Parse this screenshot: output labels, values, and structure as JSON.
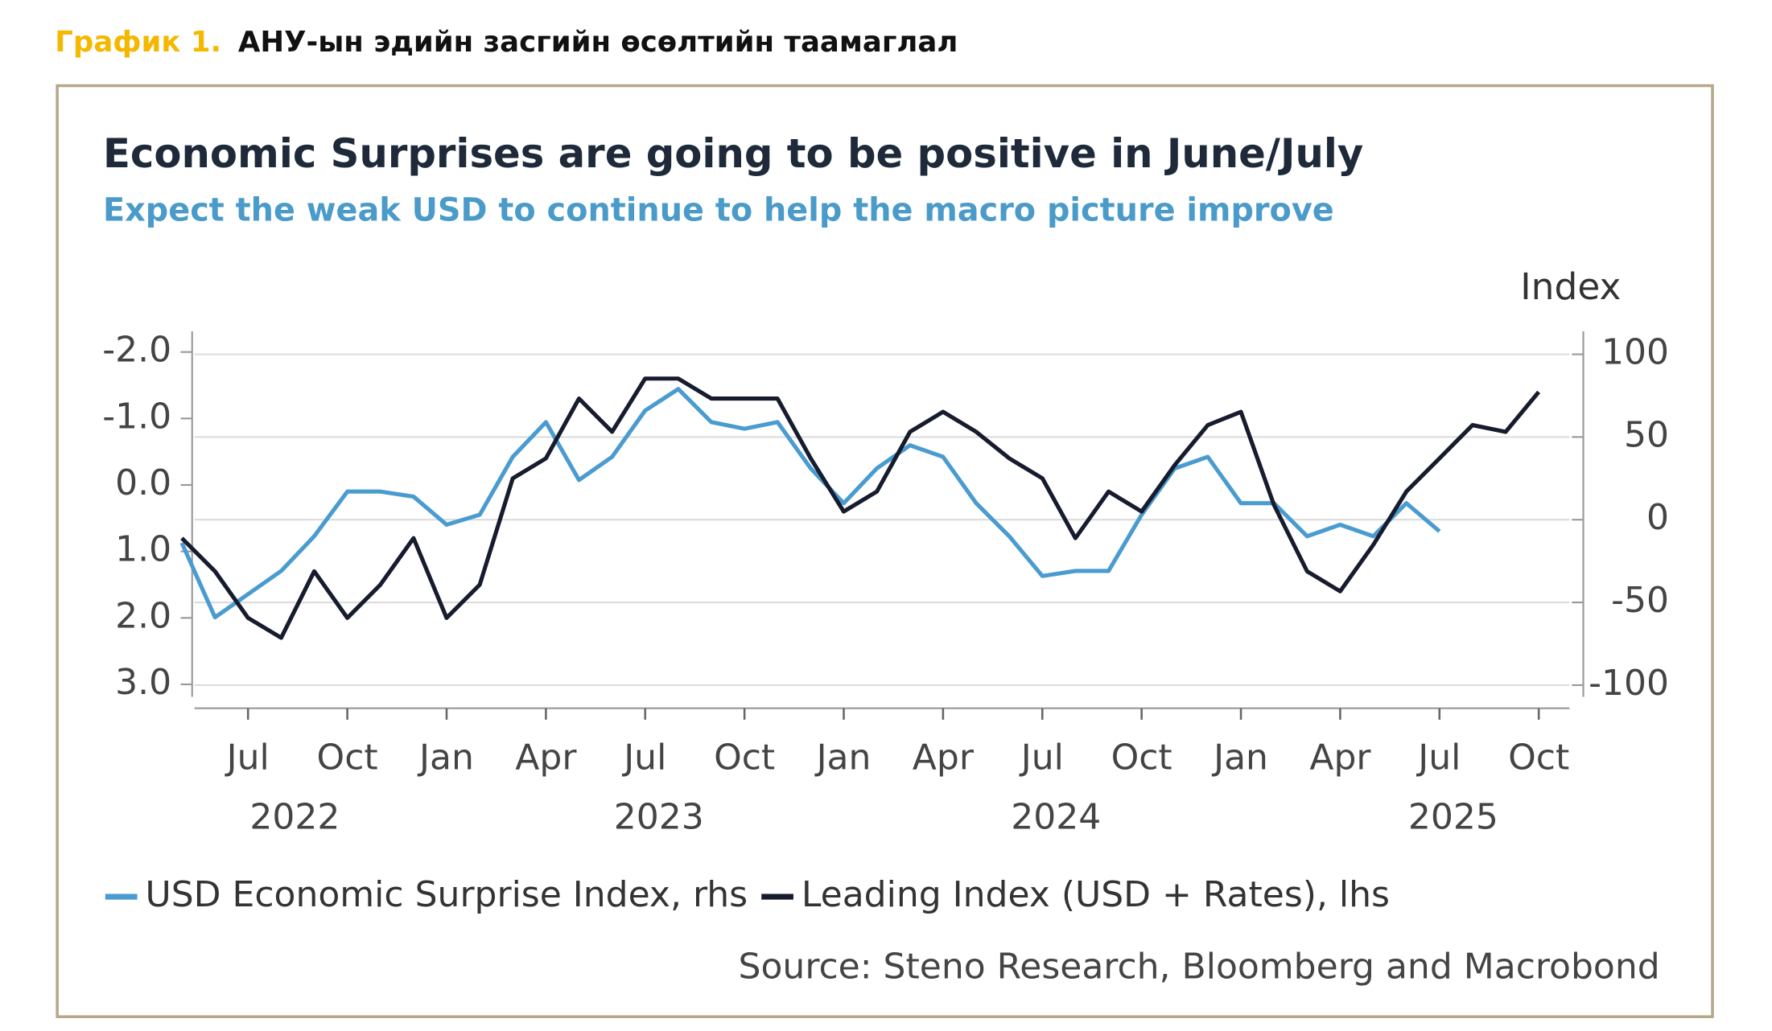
{
  "header": {
    "label": "График 1.",
    "title": "АНУ-ын эдийн засгийн өсөлтийн таамаглал"
  },
  "chart_data": {
    "type": "line",
    "title": "Economic Surprises are going to be positive in June/July",
    "subtitle": "Expect the weak USD to continue to help the macro picture improve",
    "y2label": "Index",
    "source": "Source: Steno Research, Bloomberg and Macrobond",
    "x": [
      "2022-05",
      "2022-06",
      "2022-07",
      "2022-08",
      "2022-09",
      "2022-10",
      "2022-11",
      "2022-12",
      "2023-01",
      "2023-02",
      "2023-03",
      "2023-04",
      "2023-05",
      "2023-06",
      "2023-07",
      "2023-08",
      "2023-09",
      "2023-10",
      "2023-11",
      "2023-12",
      "2024-01",
      "2024-02",
      "2024-03",
      "2024-04",
      "2024-05",
      "2024-06",
      "2024-07",
      "2024-08",
      "2024-09",
      "2024-10",
      "2024-11",
      "2024-12",
      "2025-01",
      "2025-02",
      "2025-03",
      "2025-04",
      "2025-05",
      "2025-06",
      "2025-07",
      "2025-08",
      "2025-09",
      "2025-10"
    ],
    "xlim": [
      "2022-05",
      "2025-11"
    ],
    "xticks": [
      {
        "value": "2022-07",
        "label": "Jul"
      },
      {
        "value": "2022-10",
        "label": "Oct"
      },
      {
        "value": "2023-01",
        "label": "Jan"
      },
      {
        "value": "2023-04",
        "label": "Apr"
      },
      {
        "value": "2023-07",
        "label": "Jul"
      },
      {
        "value": "2023-10",
        "label": "Oct"
      },
      {
        "value": "2024-01",
        "label": "Jan"
      },
      {
        "value": "2024-04",
        "label": "Apr"
      },
      {
        "value": "2024-07",
        "label": "Jul"
      },
      {
        "value": "2024-10",
        "label": "Oct"
      },
      {
        "value": "2025-01",
        "label": "Jan"
      },
      {
        "value": "2025-04",
        "label": "Apr"
      },
      {
        "value": "2025-07",
        "label": "Jul"
      },
      {
        "value": "2025-10",
        "label": "Oct"
      }
    ],
    "year_labels": [
      {
        "value": "2022-08",
        "label": "2022"
      },
      {
        "value": "2023-07",
        "label": "2023"
      },
      {
        "value": "2024-07",
        "label": "2024"
      },
      {
        "value": "2025-07",
        "label": "2025"
      }
    ],
    "ylim": [
      3.36,
      -2.14
    ],
    "yticks": [
      {
        "value": -2,
        "label": "-2.0"
      },
      {
        "value": -1,
        "label": "-1.0"
      },
      {
        "value": 0,
        "label": "0.0"
      },
      {
        "value": 1,
        "label": "1.0"
      },
      {
        "value": 2,
        "label": "2.0"
      },
      {
        "value": 3,
        "label": "3.0"
      }
    ],
    "y2lim": [
      -114,
      107
    ],
    "y2ticks": [
      100,
      50,
      0,
      -50,
      -100
    ],
    "grid": true,
    "series": [
      {
        "name": "USD Economic Surprise Index, rhs",
        "color": "#4a9bd0",
        "axis": "y2",
        "values": [
          -14,
          -59,
          -45,
          -31,
          -10,
          17,
          17,
          14,
          -3,
          3,
          38,
          59,
          24,
          38,
          66,
          79,
          59,
          55,
          59,
          31,
          10,
          31,
          45,
          38,
          10,
          -10,
          -34,
          -31,
          -31,
          3,
          31,
          38,
          10,
          10,
          -10,
          -3,
          -10,
          10,
          -7,
          null,
          null,
          null
        ]
      },
      {
        "name": "Leading Index (USD + Rates), lhs",
        "color": "#161c2e",
        "axis": "y",
        "values": [
          0.8,
          1.3,
          2.0,
          2.3,
          1.3,
          2.0,
          1.5,
          0.8,
          2.0,
          1.5,
          -0.1,
          -0.4,
          -1.3,
          -0.8,
          -1.6,
          -1.6,
          -1.3,
          -1.3,
          -1.3,
          -0.4,
          0.4,
          0.1,
          -0.8,
          -1.1,
          -0.8,
          -0.4,
          -0.1,
          0.8,
          0.1,
          0.4,
          -0.3,
          -0.9,
          -1.1,
          0.3,
          1.3,
          1.6,
          0.9,
          0.1,
          -0.4,
          -0.9,
          -0.8,
          -1.4
        ]
      }
    ]
  }
}
